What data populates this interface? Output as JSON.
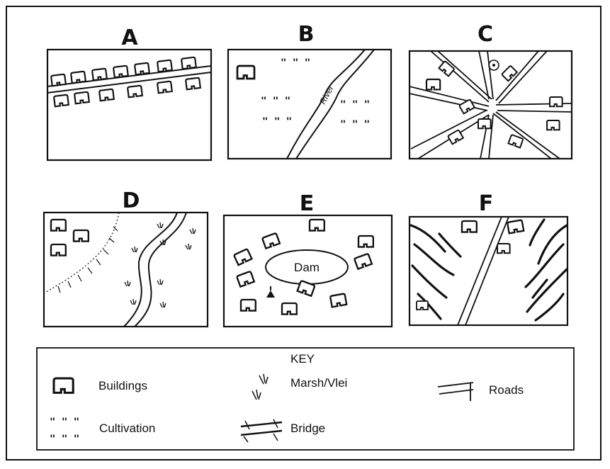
{
  "panels": [
    {
      "id": "A",
      "label": "A"
    },
    {
      "id": "B",
      "label": "B",
      "river_label": "River"
    },
    {
      "id": "C",
      "label": "C"
    },
    {
      "id": "D",
      "label": "D"
    },
    {
      "id": "E",
      "label": "E",
      "dam_label": "Dam"
    },
    {
      "id": "F",
      "label": "F"
    }
  ],
  "key": {
    "title": "KEY",
    "items": [
      {
        "symbol": "building-icon",
        "label": "Buildings"
      },
      {
        "symbol": "marsh-icon",
        "label": "Marsh/Vlei"
      },
      {
        "symbol": "road-icon",
        "label": "Roads"
      },
      {
        "symbol": "cultivation-icon",
        "label": "Cultivation"
      },
      {
        "symbol": "bridge-icon",
        "label": "Bridge"
      }
    ]
  }
}
